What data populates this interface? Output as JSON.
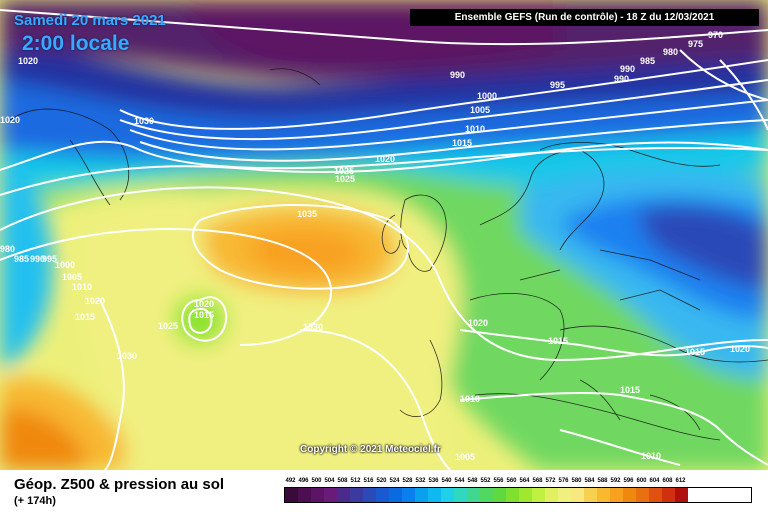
{
  "header": {
    "date": "Samedi 20 mars 2021",
    "time": "2:00 locale",
    "run_info": "Ensemble GEFS  (Run de contrôle)  -  18 Z du 12/03/2021"
  },
  "copyright": "Copyright © 2021 Meteociel.fr",
  "footer": {
    "title": "Géop. Z500 & pression au sol",
    "subtitle": "(+ 174h)"
  },
  "isobar_labels": [
    "1020",
    "1030",
    "1020",
    "980",
    "985",
    "990",
    "995",
    "1000",
    "1005",
    "1010",
    "1015",
    "1020",
    "1025",
    "1035",
    "1020",
    "1015",
    "1025",
    "1030",
    "1030",
    "1020",
    "1015",
    "1010",
    "1005",
    "1010",
    "1015",
    "1020",
    "1015",
    "990",
    "995",
    "990",
    "1000",
    "1005",
    "1010",
    "1015",
    "1020",
    "1025",
    "970",
    "975",
    "980",
    "985",
    "990"
  ],
  "legend": {
    "ticks": [
      "492",
      "496",
      "500",
      "504",
      "508",
      "512",
      "516",
      "520",
      "524",
      "528",
      "532",
      "536",
      "540",
      "544",
      "548",
      "552",
      "556",
      "560",
      "564",
      "568",
      "572",
      "576",
      "580",
      "584",
      "588",
      "592",
      "596",
      "600",
      "604",
      "608",
      "612"
    ],
    "colors": [
      "#3a0a3a",
      "#4d0f52",
      "#5e1466",
      "#6a1a78",
      "#4a2a8a",
      "#3a3aa0",
      "#2a4ab8",
      "#1a5ad0",
      "#0a6ae0",
      "#0a80f0",
      "#0aa0f0",
      "#10b8f0",
      "#20d0e8",
      "#30d8c0",
      "#40d890",
      "#50d860",
      "#60d840",
      "#80e030",
      "#a0e830",
      "#c0f040",
      "#e0f060",
      "#f0f080",
      "#f8e880",
      "#f8d050",
      "#f8b830",
      "#f8a020",
      "#f08810",
      "#e87010",
      "#e05010",
      "#d03010",
      "#b01010"
    ]
  }
}
